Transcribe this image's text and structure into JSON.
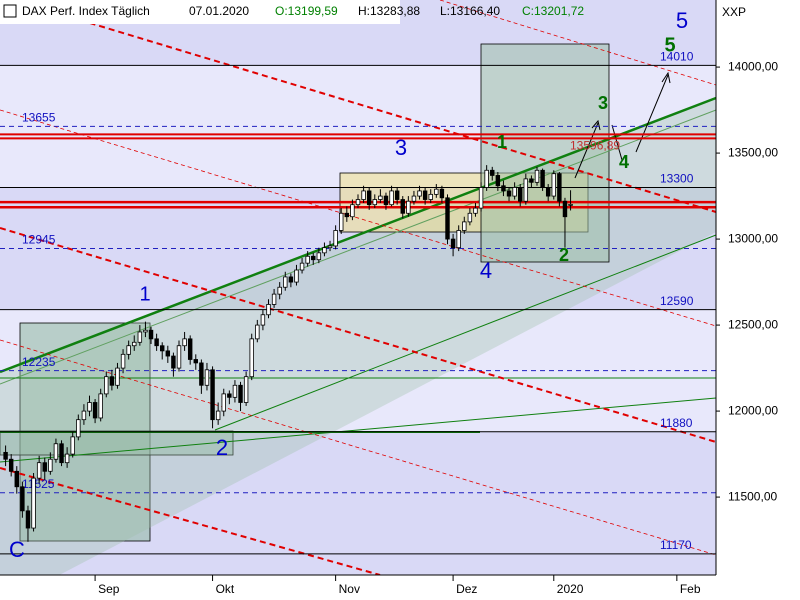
{
  "chart_data": {
    "type": "candlestick",
    "header": {
      "name": "DAX Perf. Index Täglich",
      "date": "07.01.2020",
      "open": "O:13199,59",
      "high": "H:13283,88",
      "low": "L:13166,40",
      "close": "C:13201,72"
    },
    "axis_label": "XXP",
    "ylim": [
      11047,
      14390
    ],
    "yticks": [
      {
        "value": 11500,
        "label": "11500,00"
      },
      {
        "value": 12000,
        "label": "12000,00"
      },
      {
        "value": 12500,
        "label": "12500,00"
      },
      {
        "value": 13000,
        "label": "13000,00"
      },
      {
        "value": 13500,
        "label": "13500,00"
      },
      {
        "value": 14000,
        "label": "14000,00"
      }
    ],
    "xlim": [
      -1,
      127
    ],
    "xticks": [
      {
        "value": 16,
        "label": "Sep"
      },
      {
        "value": 37,
        "label": "Okt"
      },
      {
        "value": 59,
        "label": "Nov"
      },
      {
        "value": 80,
        "label": "Dez"
      },
      {
        "value": 98,
        "label": "2020"
      },
      {
        "value": 120,
        "label": "Feb"
      }
    ],
    "levels": [
      {
        "value": 14010,
        "style": "solid"
      },
      {
        "value": 13655,
        "style": "dashed"
      },
      {
        "value": 13300,
        "style": "solid"
      },
      {
        "value": 12945,
        "style": "dashed"
      },
      {
        "value": 12590,
        "style": "solid"
      },
      {
        "value": 12235,
        "style": "dashed"
      },
      {
        "value": 11880,
        "style": "solid"
      },
      {
        "value": 11525,
        "style": "dashed"
      },
      {
        "value": 11170,
        "style": "solid"
      }
    ],
    "resistance": {
      "value": 13596.89,
      "label": "13596,89",
      "color": "#e00000"
    },
    "support": [
      13215,
      13185
    ],
    "up_color": "#ffffff",
    "down_color": "#000000",
    "annotations": [
      {
        "text": "5",
        "color": "#0000cc"
      },
      {
        "text": "5",
        "color": "#007000"
      },
      {
        "text": "3",
        "color": "#0000cc"
      },
      {
        "text": "3",
        "color": "#007000"
      },
      {
        "text": "1",
        "color": "#007000"
      },
      {
        "text": "4",
        "color": "#007000"
      },
      {
        "text": "1",
        "color": "#0000cc"
      },
      {
        "text": "2",
        "color": "#0000cc"
      },
      {
        "text": "4",
        "color": "#0000cc"
      },
      {
        "text": "2",
        "color": "#007000"
      },
      {
        "text": "C",
        "color": "#0000cc"
      }
    ],
    "candles": [
      [
        11760,
        11800,
        11680,
        11720
      ],
      [
        11720,
        11750,
        11620,
        11650
      ],
      [
        11650,
        11680,
        11520,
        11560
      ],
      [
        11560,
        11590,
        11380,
        11420
      ],
      [
        11420,
        11450,
        11240,
        11320
      ],
      [
        11320,
        11640,
        11300,
        11610
      ],
      [
        11610,
        11740,
        11580,
        11700
      ],
      [
        11700,
        11730,
        11600,
        11650
      ],
      [
        11650,
        11760,
        11630,
        11720
      ],
      [
        11720,
        11840,
        11700,
        11810
      ],
      [
        11810,
        11830,
        11680,
        11700
      ],
      [
        11700,
        11790,
        11670,
        11750
      ],
      [
        11750,
        11880,
        11730,
        11850
      ],
      [
        11850,
        11980,
        11830,
        11950
      ],
      [
        11950,
        12040,
        11920,
        12000
      ],
      [
        12000,
        12090,
        11970,
        12050
      ],
      [
        12050,
        12070,
        11930,
        11960
      ],
      [
        11960,
        12130,
        11940,
        12100
      ],
      [
        12100,
        12230,
        12080,
        12200
      ],
      [
        12200,
        12240,
        12120,
        12150
      ],
      [
        12150,
        12280,
        12130,
        12250
      ],
      [
        12250,
        12360,
        12220,
        12330
      ],
      [
        12330,
        12410,
        12300,
        12380
      ],
      [
        12380,
        12440,
        12350,
        12400
      ],
      [
        12400,
        12500,
        12380,
        12460
      ],
      [
        12460,
        12520,
        12430,
        12470
      ],
      [
        12470,
        12490,
        12390,
        12420
      ],
      [
        12420,
        12450,
        12350,
        12380
      ],
      [
        12380,
        12400,
        12300,
        12350
      ],
      [
        12350,
        12380,
        12280,
        12320
      ],
      [
        12320,
        12340,
        12200,
        12250
      ],
      [
        12250,
        12410,
        12230,
        12380
      ],
      [
        12380,
        12460,
        12350,
        12420
      ],
      [
        12420,
        12440,
        12270,
        12300
      ],
      [
        12300,
        12330,
        12240,
        12280
      ],
      [
        12280,
        12300,
        12100,
        12150
      ],
      [
        12150,
        12280,
        12120,
        12240
      ],
      [
        12240,
        12260,
        11900,
        11950
      ],
      [
        11950,
        12050,
        11920,
        12000
      ],
      [
        12000,
        12130,
        11970,
        12100
      ],
      [
        12100,
        12120,
        12040,
        12080
      ],
      [
        12080,
        12180,
        12050,
        12150
      ],
      [
        12150,
        12170,
        12000,
        12050
      ],
      [
        12050,
        12230,
        12030,
        12200
      ],
      [
        12200,
        12450,
        12180,
        12420
      ],
      [
        12420,
        12530,
        12400,
        12500
      ],
      [
        12500,
        12590,
        12470,
        12560
      ],
      [
        12560,
        12650,
        12540,
        12620
      ],
      [
        12620,
        12710,
        12600,
        12680
      ],
      [
        12680,
        12750,
        12650,
        12720
      ],
      [
        12720,
        12810,
        12700,
        12780
      ],
      [
        12780,
        12800,
        12720,
        12750
      ],
      [
        12750,
        12850,
        12730,
        12820
      ],
      [
        12820,
        12890,
        12800,
        12860
      ],
      [
        12860,
        12930,
        12840,
        12900
      ],
      [
        12900,
        12920,
        12850,
        12880
      ],
      [
        12880,
        12950,
        12860,
        12920
      ],
      [
        12920,
        12980,
        12900,
        12950
      ],
      [
        12950,
        12990,
        12930,
        12960
      ],
      [
        12960,
        13080,
        12940,
        13050
      ],
      [
        13050,
        13180,
        13030,
        13150
      ],
      [
        13150,
        13190,
        13100,
        13130
      ],
      [
        13130,
        13230,
        13110,
        13200
      ],
      [
        13200,
        13260,
        13180,
        13230
      ],
      [
        13230,
        13310,
        13210,
        13280
      ],
      [
        13280,
        13300,
        13170,
        13200
      ],
      [
        13200,
        13260,
        13180,
        13230
      ],
      [
        13230,
        13290,
        13210,
        13250
      ],
      [
        13250,
        13270,
        13170,
        13200
      ],
      [
        13200,
        13310,
        13190,
        13280
      ],
      [
        13280,
        13300,
        13200,
        13230
      ],
      [
        13230,
        13250,
        13120,
        13150
      ],
      [
        13150,
        13250,
        13130,
        13220
      ],
      [
        13220,
        13280,
        13200,
        13250
      ],
      [
        13250,
        13310,
        13230,
        13280
      ],
      [
        13280,
        13300,
        13200,
        13230
      ],
      [
        13230,
        13290,
        13210,
        13260
      ],
      [
        13260,
        13320,
        13240,
        13290
      ],
      [
        13290,
        13310,
        13210,
        13240
      ],
      [
        13240,
        13260,
        12970,
        13000
      ],
      [
        13000,
        13030,
        12900,
        12950
      ],
      [
        12950,
        13080,
        12930,
        13050
      ],
      [
        13050,
        13130,
        13030,
        13100
      ],
      [
        13100,
        13180,
        13080,
        13150
      ],
      [
        13150,
        13210,
        13130,
        13180
      ],
      [
        13180,
        13330,
        13160,
        13300
      ],
      [
        13300,
        13430,
        13280,
        13400
      ],
      [
        13400,
        13420,
        13340,
        13370
      ],
      [
        13370,
        13390,
        13280,
        13310
      ],
      [
        13310,
        13340,
        13250,
        13280
      ],
      [
        13280,
        13300,
        13220,
        13250
      ],
      [
        13250,
        13330,
        13230,
        13300
      ],
      [
        13300,
        13320,
        13190,
        13220
      ],
      [
        13220,
        13380,
        13200,
        13350
      ],
      [
        13350,
        13370,
        13300,
        13330
      ],
      [
        13330,
        13420,
        13310,
        13400
      ],
      [
        13400,
        13410,
        13280,
        13300
      ],
      [
        13300,
        13320,
        13220,
        13250
      ],
      [
        13250,
        13400,
        13230,
        13380
      ],
      [
        13380,
        13390,
        13190,
        13220
      ],
      [
        13220,
        13240,
        12950,
        13130
      ],
      [
        13199.59,
        13283.88,
        13166.4,
        13201.72
      ]
    ]
  }
}
